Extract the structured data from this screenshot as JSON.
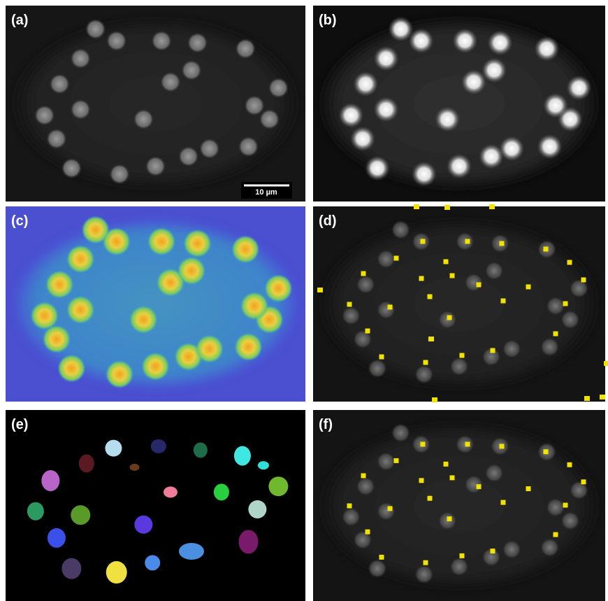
{
  "panels": [
    {
      "label": "(a)",
      "scale_bar": "10 µm"
    },
    {
      "label": "(b)"
    },
    {
      "label": "(c)"
    },
    {
      "label": "(d)"
    },
    {
      "label": "(e)"
    },
    {
      "label": "(f)"
    }
  ]
}
